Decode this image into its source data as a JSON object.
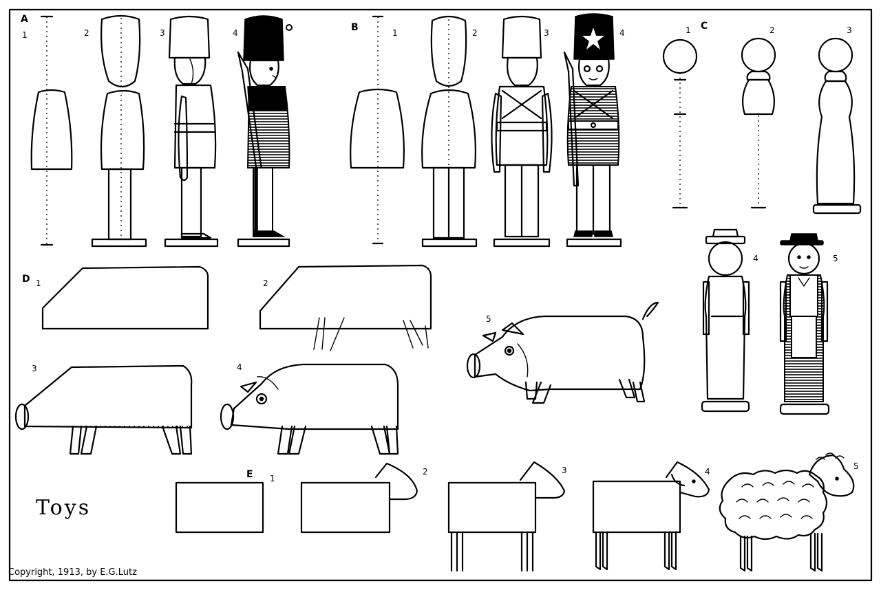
{
  "title": "Toys",
  "copyright": "Copyright, 1913, by E.G.Lutz",
  "sections": {
    "A": {
      "label": "A",
      "steps": [
        "1",
        "2",
        "3",
        "4"
      ]
    },
    "B": {
      "label": "B",
      "steps": [
        "1",
        "2",
        "3",
        "4"
      ]
    },
    "C": {
      "label": "C",
      "steps": [
        "1",
        "2",
        "3",
        "4",
        "5"
      ]
    },
    "D": {
      "label": "D",
      "steps": [
        "1",
        "2",
        "3",
        "4",
        "5"
      ]
    },
    "E": {
      "label": "E",
      "steps": [
        "1",
        "2",
        "3",
        "4",
        "5"
      ]
    }
  }
}
